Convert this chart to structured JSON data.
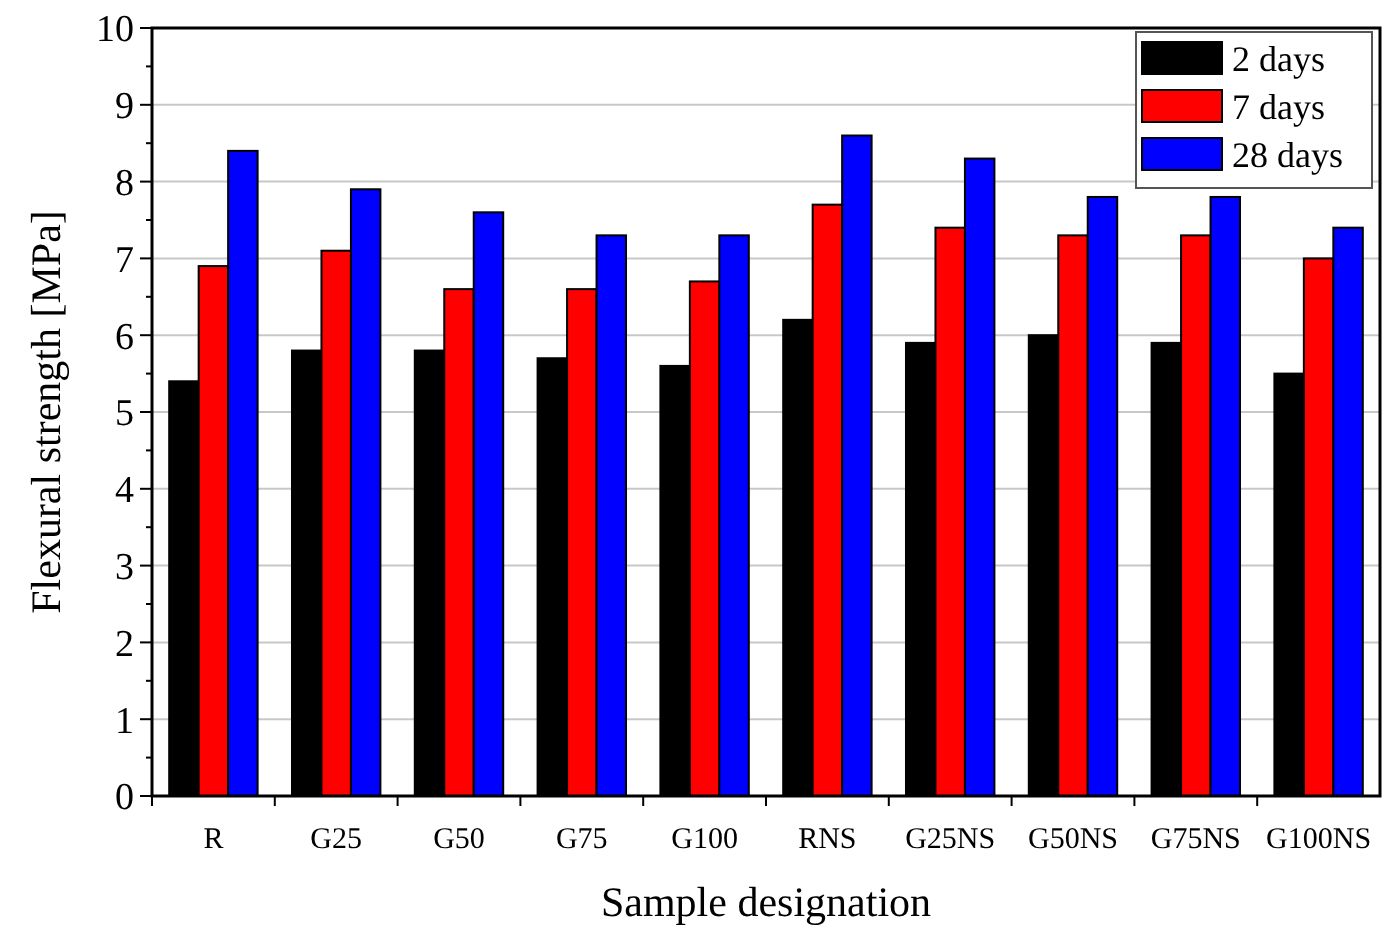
{
  "chart_data": {
    "type": "bar",
    "xlabel": "Sample designation",
    "ylabel": "Flexural strength [MPa]",
    "categories": [
      "R",
      "G25",
      "G50",
      "G75",
      "G100",
      "RNS",
      "G25NS",
      "G50NS",
      "G75NS",
      "G100NS"
    ],
    "series": [
      {
        "name": "2 days",
        "color": "#000000",
        "values": [
          5.4,
          5.8,
          5.8,
          5.7,
          5.6,
          6.2,
          5.9,
          6.0,
          5.9,
          5.5
        ]
      },
      {
        "name": "7 days",
        "color": "#ff0000",
        "values": [
          6.9,
          7.1,
          6.6,
          6.6,
          6.7,
          7.7,
          7.4,
          7.3,
          7.3,
          7.0
        ]
      },
      {
        "name": "28 days",
        "color": "#0000ff",
        "values": [
          8.4,
          7.9,
          7.6,
          7.3,
          7.3,
          8.6,
          8.3,
          7.8,
          7.8,
          7.4
        ]
      }
    ],
    "ylim": [
      0,
      10
    ],
    "yticks": [
      0,
      {
        "value": 0.5,
        "label": null
      },
      1,
      {
        "value": 1.5,
        "label": null
      },
      2,
      {
        "value": 2.5,
        "label": null
      },
      3,
      {
        "value": 3.5,
        "label": null
      },
      4,
      {
        "value": 4.5,
        "label": null
      },
      5,
      {
        "value": 5.5,
        "label": null
      },
      6,
      {
        "value": 6.5,
        "label": null
      },
      7,
      {
        "value": 7.5,
        "label": null
      },
      8,
      {
        "value": 8.5,
        "label": null
      },
      9,
      {
        "value": 9.5,
        "label": null
      },
      10
    ],
    "grid": "y",
    "legend": "top right"
  }
}
